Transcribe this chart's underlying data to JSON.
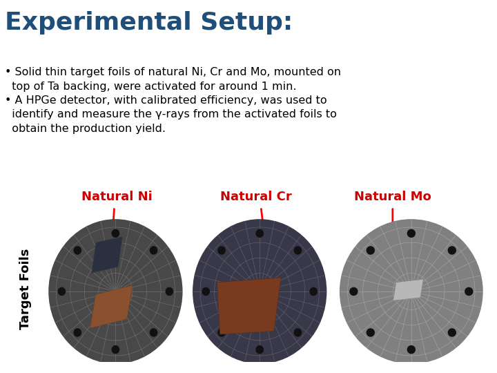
{
  "title": "Experimental Setup:",
  "title_color": "#1F4E79",
  "title_fontsize": 26,
  "bg_color": "#FFFFFF",
  "bullet1_line1": "• Solid thin target foils of natural Ni, Cr and Mo, mounted on",
  "bullet1_line2": "  top of Ta backing, were activated for around 1 min.",
  "bullet2_line1": "• A HPGe detector, with calibrated efficiency, was used to",
  "bullet2_line2": "  identify and measure the γ-rays from the activated foils to",
  "bullet2_line3": "  obtain the production yield.",
  "bullet_color": "#000000",
  "bullet_fontsize": 11.5,
  "label_Ni": "Natural Ni",
  "label_Cr": "Natural Cr",
  "label_Mo": "Natural Mo",
  "label_color": "#CC0000",
  "label_fontsize": 13,
  "ylabel_text": "Target Foils",
  "ylabel_color": "#000000",
  "ylabel_fontsize": 13
}
